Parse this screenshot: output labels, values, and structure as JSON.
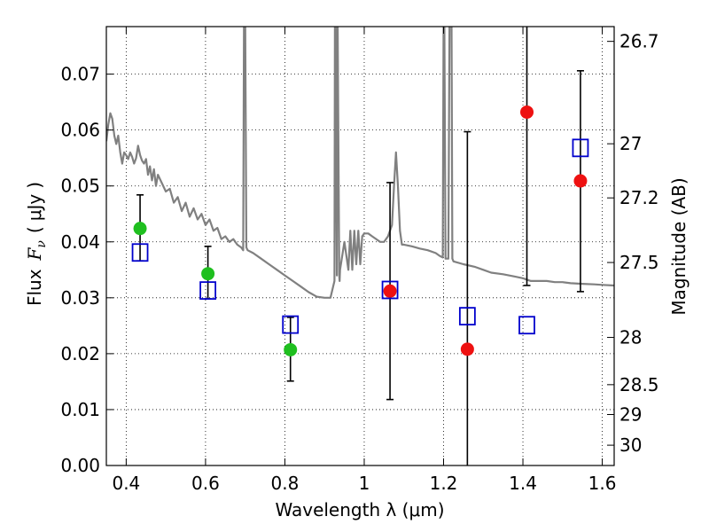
{
  "chart_data": {
    "type": "scatter",
    "xlabel": "Wavelength  λ (μm)",
    "ylabel_parts": [
      "Flux",
      "F",
      "ν",
      "(",
      "μJy",
      ")"
    ],
    "ylabel": "Flux  Fν  ( μJy )",
    "right_ylabel": "Magnitude (AB)",
    "xlim": [
      0.35,
      1.63
    ],
    "ylim": [
      0.0,
      0.0785
    ],
    "x_ticks": [
      0.4,
      0.6,
      0.8,
      1.0,
      1.2,
      1.4,
      1.6
    ],
    "x_tick_labels": [
      "0.4",
      "0.6",
      "0.8",
      "1",
      "1.2",
      "1.4",
      "1.6"
    ],
    "y_ticks": [
      0.0,
      0.01,
      0.02,
      0.03,
      0.04,
      0.05,
      0.06,
      0.07
    ],
    "y_tick_labels": [
      "0.00",
      "0.01",
      "0.02",
      "0.03",
      "0.04",
      "0.05",
      "0.06",
      "0.07"
    ],
    "right_ticks": [
      "26.7",
      "27",
      "27.2",
      "27.5",
      "28",
      "28.5",
      "29",
      "30"
    ],
    "grid": true,
    "colors": {
      "model": "#808080",
      "green": "#1fbf1f",
      "red": "#ee1111",
      "blue_square": "#0000cc",
      "errorbar": "#000000"
    },
    "series": [
      {
        "marker": "circle-green",
        "points": [
          {
            "x": 0.435,
            "y": 0.0424,
            "ylo": 0.0366,
            "yhi": 0.0484
          },
          {
            "x": 0.606,
            "y": 0.0343,
            "ylo": 0.0298,
            "yhi": 0.0392
          },
          {
            "x": 0.814,
            "y": 0.0207,
            "ylo": 0.0151,
            "yhi": 0.0265
          }
        ]
      },
      {
        "marker": "circle-red",
        "points": [
          {
            "x": 1.065,
            "y": 0.0312,
            "ylo": 0.0118,
            "yhi": 0.0506
          },
          {
            "x": 1.26,
            "y": 0.0208,
            "ylo": -0.0001,
            "yhi": 0.0597
          },
          {
            "x": 1.41,
            "y": 0.0632,
            "ylo": 0.0322,
            "yhi": 0.0795
          },
          {
            "x": 1.545,
            "y": 0.0509,
            "ylo": 0.0311,
            "yhi": 0.0706
          }
        ]
      },
      {
        "marker": "square-blue",
        "points": [
          {
            "x": 0.435,
            "y": 0.0381
          },
          {
            "x": 0.606,
            "y": 0.0313
          },
          {
            "x": 0.814,
            "y": 0.0252
          },
          {
            "x": 1.065,
            "y": 0.0314
          },
          {
            "x": 1.26,
            "y": 0.0267
          },
          {
            "x": 1.41,
            "y": 0.0251
          },
          {
            "x": 1.545,
            "y": 0.0568
          }
        ]
      },
      {
        "marker": "model-line",
        "x": [
          0.35,
          0.355,
          0.36,
          0.365,
          0.37,
          0.375,
          0.38,
          0.385,
          0.39,
          0.395,
          0.4,
          0.405,
          0.41,
          0.415,
          0.42,
          0.425,
          0.43,
          0.435,
          0.44,
          0.445,
          0.45,
          0.455,
          0.46,
          0.465,
          0.47,
          0.475,
          0.48,
          0.49,
          0.5,
          0.51,
          0.52,
          0.53,
          0.54,
          0.55,
          0.56,
          0.57,
          0.58,
          0.59,
          0.6,
          0.61,
          0.62,
          0.63,
          0.64,
          0.65,
          0.66,
          0.67,
          0.68,
          0.69,
          0.695,
          0.697,
          0.7,
          0.703,
          0.706,
          0.72,
          0.74,
          0.76,
          0.78,
          0.8,
          0.82,
          0.84,
          0.86,
          0.88,
          0.9,
          0.915,
          0.925,
          0.926,
          0.927,
          0.931,
          0.932,
          0.933,
          0.937,
          0.938,
          0.939,
          0.95,
          0.96,
          0.965,
          0.97,
          0.975,
          0.98,
          0.985,
          0.99,
          0.995,
          1.0,
          1.01,
          1.02,
          1.03,
          1.04,
          1.05,
          1.06,
          1.07,
          1.075,
          1.08,
          1.085,
          1.09,
          1.095,
          1.1,
          1.12,
          1.14,
          1.16,
          1.18,
          1.19,
          1.198,
          1.2,
          1.202,
          1.205,
          1.212,
          1.215,
          1.218,
          1.22,
          1.222,
          1.225,
          1.25,
          1.28,
          1.3,
          1.32,
          1.35,
          1.38,
          1.4,
          1.42,
          1.44,
          1.46,
          1.48,
          1.5,
          1.52,
          1.55,
          1.58,
          1.6,
          1.63
        ],
        "y": [
          0.058,
          0.061,
          0.063,
          0.062,
          0.059,
          0.0575,
          0.059,
          0.056,
          0.054,
          0.056,
          0.0555,
          0.0548,
          0.056,
          0.0552,
          0.054,
          0.055,
          0.0572,
          0.0555,
          0.0545,
          0.054,
          0.0548,
          0.052,
          0.0535,
          0.051,
          0.053,
          0.05,
          0.052,
          0.0505,
          0.049,
          0.0495,
          0.047,
          0.048,
          0.0455,
          0.047,
          0.0445,
          0.046,
          0.044,
          0.045,
          0.043,
          0.044,
          0.042,
          0.0425,
          0.0405,
          0.041,
          0.04,
          0.0405,
          0.0395,
          0.039,
          0.0385,
          0.079,
          0.079,
          0.039,
          0.0385,
          0.038,
          0.037,
          0.036,
          0.035,
          0.034,
          0.033,
          0.032,
          0.031,
          0.0302,
          0.03,
          0.03,
          0.033,
          0.079,
          0.079,
          0.034,
          0.079,
          0.079,
          0.034,
          0.033,
          0.035,
          0.04,
          0.035,
          0.042,
          0.035,
          0.042,
          0.036,
          0.042,
          0.036,
          0.041,
          0.0415,
          0.0415,
          0.041,
          0.0405,
          0.04,
          0.04,
          0.041,
          0.043,
          0.05,
          0.056,
          0.05,
          0.042,
          0.0395,
          0.0395,
          0.0392,
          0.0388,
          0.0385,
          0.038,
          0.0375,
          0.0372,
          0.079,
          0.079,
          0.037,
          0.037,
          0.079,
          0.079,
          0.079,
          0.037,
          0.0365,
          0.036,
          0.0355,
          0.035,
          0.0345,
          0.0342,
          0.0338,
          0.0335,
          0.033,
          0.033,
          0.033,
          0.0328,
          0.0328,
          0.0326,
          0.0325,
          0.0324,
          0.0323,
          0.0322
        ]
      }
    ]
  }
}
